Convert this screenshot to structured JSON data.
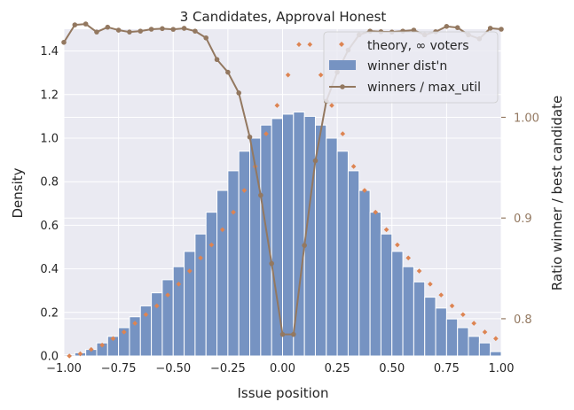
{
  "chart_data": {
    "type": "bar",
    "title": "3 Candidates, Approval Honest",
    "xlabel": "Issue position",
    "ylabel": "Density",
    "y2label": "Ratio winner / best candidate",
    "xlim": [
      -1.0,
      1.0
    ],
    "ylim": [
      0,
      1.5
    ],
    "y2lim": [
      0.763,
      1.0875
    ],
    "xticks": [
      "−1.00",
      "−0.75",
      "−0.50",
      "−0.25",
      "0.00",
      "0.25",
      "0.50",
      "0.75",
      "1.00"
    ],
    "yticks": [
      "0.0",
      "0.2",
      "0.4",
      "0.6",
      "0.8",
      "1.0",
      "1.2",
      "1.4"
    ],
    "y2ticks": [
      "0.8",
      "0.9",
      "1.00"
    ],
    "grid": true,
    "legend_position": "top-right",
    "colors": {
      "bars": "#7693c2",
      "bar_edge": "#ffffff",
      "theory": "#dd8452",
      "ratio_line": "#937860",
      "background": "#eaeaf2",
      "grid": "#ffffff"
    },
    "series": [
      {
        "name": "winner dist'n",
        "kind": "bar",
        "bin_width": 0.05,
        "x": [
          -0.975,
          -0.925,
          -0.875,
          -0.825,
          -0.775,
          -0.725,
          -0.675,
          -0.625,
          -0.575,
          -0.525,
          -0.475,
          -0.425,
          -0.375,
          -0.325,
          -0.275,
          -0.225,
          -0.175,
          -0.125,
          -0.075,
          -0.025,
          0.025,
          0.075,
          0.125,
          0.175,
          0.225,
          0.275,
          0.325,
          0.375,
          0.425,
          0.475,
          0.525,
          0.575,
          0.625,
          0.675,
          0.725,
          0.775,
          0.825,
          0.875,
          0.925,
          0.975
        ],
        "values": [
          0.005,
          0.015,
          0.03,
          0.06,
          0.09,
          0.13,
          0.18,
          0.23,
          0.29,
          0.35,
          0.41,
          0.48,
          0.56,
          0.66,
          0.76,
          0.85,
          0.94,
          1.0,
          1.06,
          1.09,
          1.11,
          1.12,
          1.1,
          1.06,
          1.0,
          0.94,
          0.85,
          0.76,
          0.66,
          0.56,
          0.48,
          0.41,
          0.34,
          0.27,
          0.22,
          0.17,
          0.13,
          0.09,
          0.06,
          0.02
        ]
      },
      {
        "name": "theory, ∞ voters",
        "kind": "scatter",
        "x": [
          -0.975,
          -0.925,
          -0.875,
          -0.825,
          -0.775,
          -0.725,
          -0.675,
          -0.625,
          -0.575,
          -0.525,
          -0.475,
          -0.425,
          -0.375,
          -0.325,
          -0.275,
          -0.225,
          -0.175,
          -0.125,
          -0.075,
          -0.025,
          0.025,
          0.075,
          0.125,
          0.175,
          0.225,
          0.275,
          0.325,
          0.375,
          0.425,
          0.475,
          0.525,
          0.575,
          0.625,
          0.675,
          0.725,
          0.775,
          0.825,
          0.875,
          0.925,
          0.975
        ],
        "values": [
          0.0,
          0.01,
          0.03,
          0.05,
          0.08,
          0.11,
          0.15,
          0.19,
          0.23,
          0.28,
          0.33,
          0.39,
          0.45,
          0.51,
          0.58,
          0.66,
          0.76,
          0.87,
          1.02,
          1.15,
          1.29,
          1.43,
          1.43,
          1.29,
          1.15,
          1.02,
          0.87,
          0.76,
          0.66,
          0.58,
          0.51,
          0.45,
          0.39,
          0.33,
          0.28,
          0.23,
          0.19,
          0.15,
          0.11,
          0.08
        ]
      },
      {
        "name": "winners / max_util",
        "kind": "line",
        "axis": "secondary",
        "x": [
          -1.0,
          -0.95,
          -0.9,
          -0.85,
          -0.8,
          -0.75,
          -0.7,
          -0.65,
          -0.6,
          -0.55,
          -0.5,
          -0.45,
          -0.4,
          -0.35,
          -0.3,
          -0.25,
          -0.2,
          -0.15,
          -0.1,
          -0.05,
          0.0,
          0.05,
          0.1,
          0.15,
          0.2,
          0.25,
          0.3,
          0.35,
          0.4,
          0.45,
          0.5,
          0.55,
          0.6,
          0.65,
          0.7,
          0.75,
          0.8,
          0.85,
          0.9,
          0.95,
          1.0
        ],
        "values": [
          1.0745,
          1.0918,
          1.0927,
          1.0847,
          1.0895,
          1.0866,
          1.0847,
          1.0856,
          1.0875,
          1.0881,
          1.0874,
          1.0884,
          1.0856,
          1.0789,
          1.0574,
          1.0448,
          1.0242,
          0.9804,
          0.9226,
          0.8548,
          0.7844,
          0.7844,
          0.8728,
          0.9569,
          1.016,
          1.0448,
          1.0668,
          1.0819,
          1.0856,
          1.085,
          1.0847,
          1.0856,
          1.0866,
          1.0819,
          1.085,
          1.0903,
          1.0891,
          1.0819,
          1.078,
          1.0885,
          1.0875
        ]
      }
    ]
  }
}
